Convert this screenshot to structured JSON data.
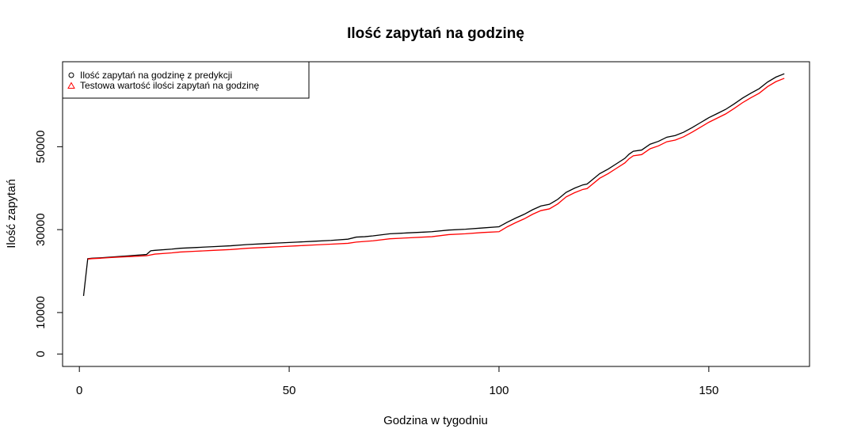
{
  "chart_data": {
    "type": "line",
    "title": "Ilość zapytań na godzinę",
    "xlabel": "Godzina w tygodniu",
    "ylabel": "Ilość zapytań",
    "xlim": [
      -4,
      174
    ],
    "ylim": [
      -3000,
      70500
    ],
    "x_ticks": [
      0,
      50,
      100,
      150
    ],
    "y_ticks": [
      0,
      10000,
      30000,
      50000
    ],
    "grid": false,
    "legend_position": "top-left",
    "series": [
      {
        "name": "Ilość zapytań na godzinę z predykcji",
        "color": "#000000",
        "marker": "circle",
        "points": [
          [
            1,
            14000
          ],
          [
            2,
            23000
          ],
          [
            3,
            23100
          ],
          [
            5,
            23200
          ],
          [
            8,
            23400
          ],
          [
            12,
            23700
          ],
          [
            16,
            24000
          ],
          [
            17,
            24900
          ],
          [
            18,
            25000
          ],
          [
            22,
            25300
          ],
          [
            24,
            25500
          ],
          [
            28,
            25700
          ],
          [
            32,
            25900
          ],
          [
            36,
            26100
          ],
          [
            40,
            26400
          ],
          [
            44,
            26600
          ],
          [
            48,
            26800
          ],
          [
            52,
            27000
          ],
          [
            56,
            27200
          ],
          [
            60,
            27400
          ],
          [
            64,
            27700
          ],
          [
            66,
            28200
          ],
          [
            68,
            28300
          ],
          [
            70,
            28500
          ],
          [
            74,
            29000
          ],
          [
            78,
            29200
          ],
          [
            82,
            29400
          ],
          [
            84,
            29500
          ],
          [
            88,
            29900
          ],
          [
            92,
            30100
          ],
          [
            96,
            30400
          ],
          [
            100,
            30700
          ],
          [
            102,
            31800
          ],
          [
            104,
            32800
          ],
          [
            106,
            33700
          ],
          [
            108,
            34800
          ],
          [
            110,
            35700
          ],
          [
            112,
            36100
          ],
          [
            114,
            37300
          ],
          [
            116,
            39000
          ],
          [
            118,
            40000
          ],
          [
            120,
            40800
          ],
          [
            121,
            41000
          ],
          [
            124,
            43500
          ],
          [
            126,
            44600
          ],
          [
            128,
            45900
          ],
          [
            130,
            47200
          ],
          [
            131,
            48200
          ],
          [
            132,
            48900
          ],
          [
            134,
            49200
          ],
          [
            136,
            50600
          ],
          [
            138,
            51300
          ],
          [
            140,
            52300
          ],
          [
            142,
            52700
          ],
          [
            144,
            53500
          ],
          [
            146,
            54600
          ],
          [
            148,
            55800
          ],
          [
            150,
            57000
          ],
          [
            152,
            58000
          ],
          [
            154,
            59000
          ],
          [
            156,
            60300
          ],
          [
            158,
            61700
          ],
          [
            160,
            62900
          ],
          [
            162,
            64000
          ],
          [
            164,
            65600
          ],
          [
            166,
            66800
          ],
          [
            168,
            67600
          ]
        ]
      },
      {
        "name": "Testowa wartość ilości zapytań na godzinę",
        "color": "#ff0000",
        "marker": "triangle",
        "points": [
          [
            2,
            22900
          ],
          [
            3,
            23000
          ],
          [
            5,
            23100
          ],
          [
            8,
            23300
          ],
          [
            12,
            23500
          ],
          [
            16,
            23700
          ],
          [
            18,
            24100
          ],
          [
            22,
            24400
          ],
          [
            24,
            24600
          ],
          [
            28,
            24800
          ],
          [
            32,
            25000
          ],
          [
            36,
            25200
          ],
          [
            40,
            25500
          ],
          [
            44,
            25700
          ],
          [
            48,
            25900
          ],
          [
            52,
            26100
          ],
          [
            56,
            26300
          ],
          [
            60,
            26500
          ],
          [
            64,
            26700
          ],
          [
            66,
            27000
          ],
          [
            70,
            27300
          ],
          [
            74,
            27800
          ],
          [
            78,
            28000
          ],
          [
            82,
            28200
          ],
          [
            84,
            28300
          ],
          [
            88,
            28800
          ],
          [
            92,
            29000
          ],
          [
            96,
            29300
          ],
          [
            100,
            29500
          ],
          [
            102,
            30700
          ],
          [
            104,
            31700
          ],
          [
            106,
            32600
          ],
          [
            108,
            33700
          ],
          [
            110,
            34600
          ],
          [
            112,
            35000
          ],
          [
            114,
            36200
          ],
          [
            116,
            37900
          ],
          [
            118,
            38900
          ],
          [
            120,
            39700
          ],
          [
            121,
            39900
          ],
          [
            124,
            42400
          ],
          [
            126,
            43500
          ],
          [
            128,
            44800
          ],
          [
            130,
            46100
          ],
          [
            131,
            47100
          ],
          [
            132,
            47800
          ],
          [
            134,
            48100
          ],
          [
            136,
            49500
          ],
          [
            138,
            50200
          ],
          [
            140,
            51200
          ],
          [
            142,
            51600
          ],
          [
            144,
            52400
          ],
          [
            146,
            53500
          ],
          [
            148,
            54700
          ],
          [
            150,
            55900
          ],
          [
            152,
            56900
          ],
          [
            154,
            57900
          ],
          [
            156,
            59200
          ],
          [
            158,
            60600
          ],
          [
            160,
            61800
          ],
          [
            162,
            62900
          ],
          [
            164,
            64500
          ],
          [
            166,
            65700
          ],
          [
            168,
            66500
          ]
        ]
      }
    ]
  }
}
